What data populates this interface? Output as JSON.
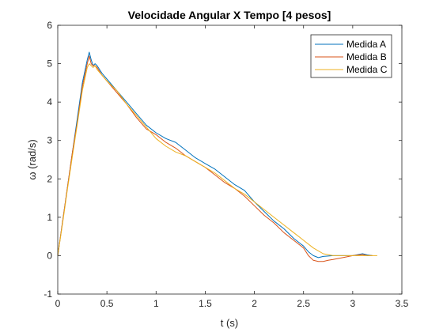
{
  "chart_data": {
    "type": "line",
    "title": "Velocidade Angular X Tempo [4 pesos]",
    "xlabel": "t (s)",
    "ylabel": "ω (rad/s)",
    "xlim": [
      0,
      3.5
    ],
    "ylim": [
      -1,
      6
    ],
    "xticks": [
      0,
      0.5,
      1,
      1.5,
      2,
      2.5,
      3,
      3.5
    ],
    "xtick_labels": [
      "0",
      "0.5",
      "1",
      "1.5",
      "2",
      "2.5",
      "3",
      "3.5"
    ],
    "yticks": [
      -1,
      0,
      1,
      2,
      3,
      4,
      5,
      6
    ],
    "ytick_labels": [
      "-1",
      "0",
      "1",
      "2",
      "3",
      "4",
      "5",
      "6"
    ],
    "grid": false,
    "legend_position": "top-right",
    "series": [
      {
        "name": "Medida A",
        "color": "#0072BD",
        "x": [
          0,
          0.05,
          0.1,
          0.15,
          0.2,
          0.25,
          0.3,
          0.32,
          0.34,
          0.36,
          0.38,
          0.4,
          0.45,
          0.5,
          0.6,
          0.7,
          0.8,
          0.9,
          1.0,
          1.1,
          1.2,
          1.3,
          1.4,
          1.5,
          1.6,
          1.7,
          1.8,
          1.9,
          2.0,
          2.1,
          2.2,
          2.3,
          2.4,
          2.5,
          2.55,
          2.6,
          2.65,
          2.7,
          2.8,
          2.9,
          3.0,
          3.1,
          3.15,
          3.2
        ],
        "y": [
          0.0,
          0.9,
          1.8,
          2.7,
          3.6,
          4.5,
          5.1,
          5.3,
          5.1,
          4.95,
          5.0,
          4.95,
          4.75,
          4.6,
          4.3,
          4.0,
          3.7,
          3.4,
          3.2,
          3.05,
          2.95,
          2.75,
          2.55,
          2.4,
          2.25,
          2.05,
          1.85,
          1.7,
          1.4,
          1.15,
          0.9,
          0.7,
          0.45,
          0.25,
          0.1,
          0.0,
          -0.05,
          -0.02,
          0.0,
          0.0,
          0.0,
          0.05,
          0.02,
          0.0
        ]
      },
      {
        "name": "Medida B",
        "color": "#D95319",
        "x": [
          0,
          0.05,
          0.1,
          0.15,
          0.2,
          0.25,
          0.3,
          0.32,
          0.34,
          0.36,
          0.38,
          0.4,
          0.45,
          0.5,
          0.6,
          0.7,
          0.8,
          0.9,
          1.0,
          1.1,
          1.2,
          1.3,
          1.4,
          1.5,
          1.6,
          1.7,
          1.8,
          1.9,
          2.0,
          2.1,
          2.2,
          2.3,
          2.4,
          2.5,
          2.55,
          2.6,
          2.65,
          2.7,
          2.75,
          2.8,
          2.9,
          3.0,
          3.1,
          3.15,
          3.2
        ],
        "y": [
          0.0,
          0.9,
          1.8,
          2.7,
          3.5,
          4.4,
          5.0,
          5.2,
          5.0,
          4.95,
          4.95,
          4.9,
          4.7,
          4.55,
          4.25,
          3.95,
          3.6,
          3.3,
          3.15,
          2.95,
          2.8,
          2.6,
          2.45,
          2.3,
          2.1,
          1.9,
          1.75,
          1.55,
          1.3,
          1.05,
          0.85,
          0.6,
          0.4,
          0.2,
          0.0,
          -0.12,
          -0.15,
          -0.15,
          -0.12,
          -0.1,
          -0.05,
          0.0,
          0.03,
          0.0,
          0.0
        ]
      },
      {
        "name": "Medida C",
        "color": "#EDB120",
        "x": [
          0,
          0.05,
          0.1,
          0.15,
          0.2,
          0.25,
          0.3,
          0.32,
          0.34,
          0.36,
          0.38,
          0.4,
          0.45,
          0.5,
          0.6,
          0.7,
          0.8,
          0.9,
          1.0,
          1.1,
          1.2,
          1.3,
          1.4,
          1.5,
          1.6,
          1.7,
          1.8,
          1.9,
          2.0,
          2.1,
          2.2,
          2.3,
          2.4,
          2.5,
          2.6,
          2.7,
          2.8,
          2.9,
          3.0,
          3.1,
          3.2,
          3.25
        ],
        "y": [
          0.0,
          0.85,
          1.75,
          2.6,
          3.45,
          4.3,
          4.9,
          5.0,
          4.95,
          4.9,
          4.95,
          4.85,
          4.7,
          4.55,
          4.3,
          3.95,
          3.65,
          3.35,
          3.05,
          2.85,
          2.7,
          2.6,
          2.45,
          2.3,
          2.15,
          1.95,
          1.75,
          1.6,
          1.4,
          1.2,
          1.0,
          0.8,
          0.6,
          0.4,
          0.2,
          0.05,
          0.0,
          0.0,
          0.0,
          0.0,
          0.0,
          0.0
        ]
      }
    ]
  }
}
